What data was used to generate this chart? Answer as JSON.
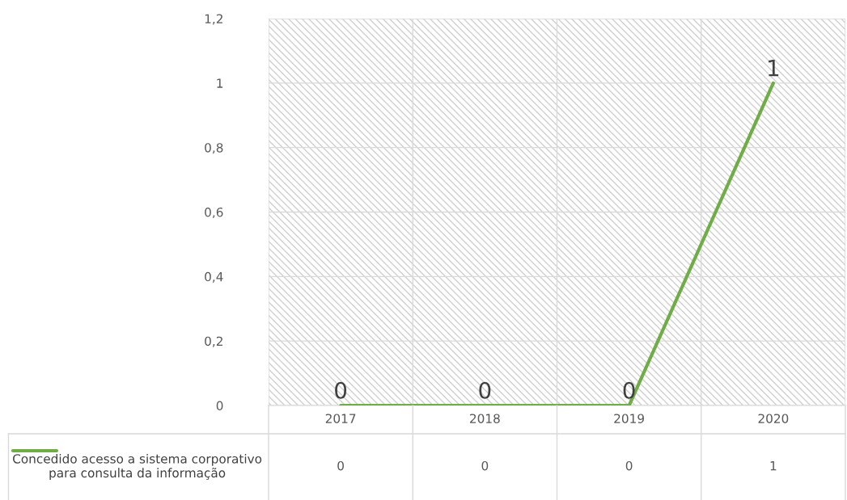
{
  "chart_data": {
    "type": "line",
    "categories": [
      "2017",
      "2018",
      "2019",
      "2020"
    ],
    "series": [
      {
        "name": "Concedido acesso a sistema corporativo para consulta da informação",
        "color": "#70ad47",
        "values": [
          0,
          0,
          0,
          1
        ]
      }
    ],
    "annotations": [
      {
        "text": "0",
        "x": "2017",
        "y": 0
      },
      {
        "text": "0",
        "x": "2018",
        "y": 0
      },
      {
        "text": "0",
        "x": "2019",
        "y": 0
      },
      {
        "text": "1",
        "x": "2020",
        "y": 1
      }
    ],
    "ylim": [
      0,
      1.2
    ],
    "yticks": [
      0,
      {
        "value": 0.2,
        "label": "0,2"
      },
      {
        "value": 0.4,
        "label": "0,4"
      },
      {
        "value": 0.6,
        "label": "0,6"
      },
      {
        "value": 0.8,
        "label": "0,8"
      },
      1,
      {
        "value": 1.2,
        "label": "1,2"
      }
    ],
    "grid": true,
    "data_labels": true,
    "legend": "bottom",
    "marker": "none",
    "line_style": "solid"
  }
}
